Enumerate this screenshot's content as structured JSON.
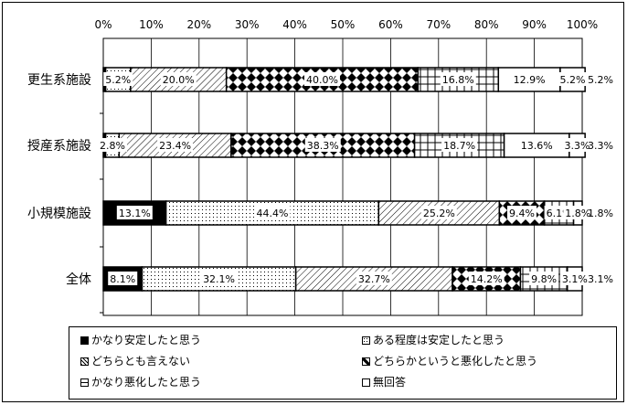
{
  "chart_data": {
    "type": "bar",
    "orientation": "horizontal",
    "stacked": true,
    "categories": [
      "更生系施設",
      "授産系施設",
      "小規模施設",
      "全体"
    ],
    "xlim": [
      0,
      100
    ],
    "x_ticks": [
      "0%",
      "10%",
      "20%",
      "30%",
      "40%",
      "50%",
      "60%",
      "70%",
      "80%",
      "90%",
      "100%"
    ],
    "grid": true,
    "legend_position": "bottom",
    "series": [
      {
        "name": "かなり安定したと思う",
        "values": [
          0.5,
          0.5,
          13.1,
          8.1
        ],
        "labels": [
          "",
          "",
          "13.1%",
          "8.1%"
        ],
        "color": "#000000"
      },
      {
        "name": "ある程度は安定したと思う",
        "values": [
          5.2,
          2.8,
          44.4,
          32.1
        ],
        "labels": [
          "5.2%",
          "2.8%",
          "44.4%",
          "32.1%"
        ],
        "color": "#ffffff"
      },
      {
        "name": "どちらとも言えない",
        "values": [
          20.0,
          23.4,
          25.2,
          32.7
        ],
        "labels": [
          "20.0%",
          "23.4%",
          "25.2%",
          "32.7%"
        ],
        "color": "#ffffff"
      },
      {
        "name": "どちらかというと悪化したと思う",
        "values": [
          40.0,
          38.3,
          9.4,
          14.2
        ],
        "labels": [
          "40.0%",
          "38.3%",
          "9.4%",
          "14.2%"
        ],
        "color": "#ffffff"
      },
      {
        "name": "かなり悪化したと思う",
        "values": [
          16.8,
          18.7,
          6.1,
          9.8
        ],
        "labels": [
          "16.8%",
          "18.7%",
          "6.1%",
          "9.8%"
        ],
        "color": "#ffffff"
      },
      {
        "name": "無回答",
        "values": [
          12.9,
          13.6,
          1.8,
          3.1
        ],
        "labels": [
          "12.9%",
          "13.6%",
          "1.8%",
          "3.1%"
        ],
        "color": "#ffffff"
      },
      {
        "name": "",
        "values": [
          5.2,
          3.3,
          0,
          0
        ],
        "labels": [
          "5.2%",
          "3.3%",
          "",
          ""
        ],
        "color": "#ffffff"
      }
    ],
    "outside_labels": [
      "5.2%",
      "3.3%",
      "1.8%",
      "3.1%"
    ]
  },
  "legend": {
    "items": [
      {
        "label": "かなり安定したと思う",
        "fill": "#000000"
      },
      {
        "label": "ある程度は安定したと思う",
        "fill": "#ffffff"
      },
      {
        "label": "どちらとも言えない",
        "fill": "#ffffff"
      },
      {
        "label": "どちらかというと悪化したと思う",
        "fill": "#ffffff"
      },
      {
        "label": "かなり悪化したと思う",
        "fill": "#ffffff"
      },
      {
        "label": "無回答",
        "fill": "#ffffff"
      }
    ]
  }
}
